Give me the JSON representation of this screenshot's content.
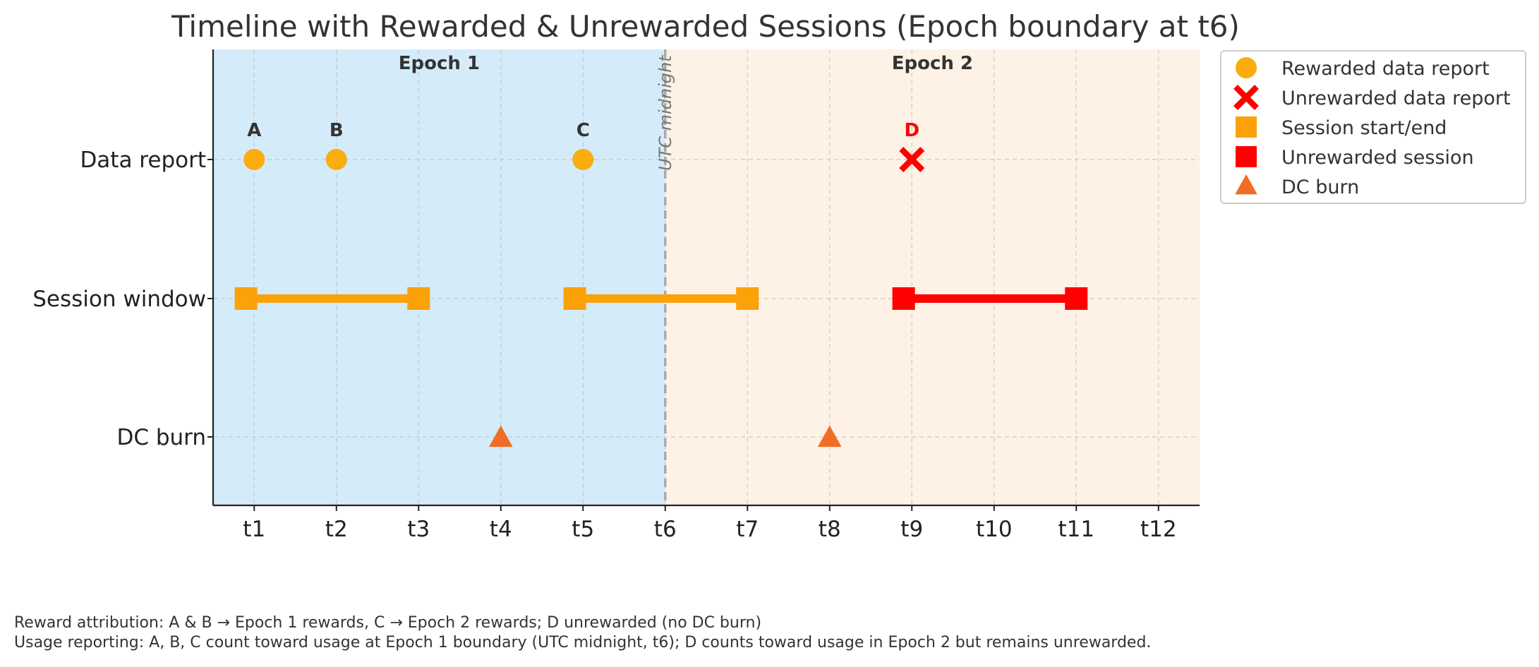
{
  "chart_data": {
    "type": "scatter",
    "title": "Timeline with Rewarded & Unrewarded Sessions (Epoch boundary at t6)",
    "xlabel": "",
    "ylabel": "",
    "categories_x": [
      "t1",
      "t2",
      "t3",
      "t4",
      "t5",
      "t6",
      "t7",
      "t8",
      "t9",
      "t10",
      "t11",
      "t12"
    ],
    "categories_y": [
      "Data report",
      "Session window",
      "DC burn"
    ],
    "xlim": [
      0.5,
      12.5
    ],
    "grid": true,
    "legend_position": "outside-top-right",
    "regions": [
      {
        "label": "Epoch 1",
        "from": 0.5,
        "to": 6,
        "color": "#d4ebfa"
      },
      {
        "label": "Epoch 2",
        "from": 6,
        "to": 12.5,
        "color": "#fef1e6"
      }
    ],
    "vline": {
      "x": 6,
      "label": "UTC midnight",
      "color": "#aaaaaa"
    },
    "series": [
      {
        "name": "Rewarded data report",
        "marker": "circle",
        "color": "#fbac0f",
        "y": "Data report",
        "points": [
          {
            "x": 1,
            "label": "A"
          },
          {
            "x": 2,
            "label": "B"
          },
          {
            "x": 5,
            "label": "C"
          }
        ]
      },
      {
        "name": "Unrewarded data report",
        "marker": "x",
        "color": "#ff0000",
        "y": "Data report",
        "points": [
          {
            "x": 9,
            "label": "D"
          }
        ]
      },
      {
        "name": "Session start/end",
        "marker": "square",
        "color": "#fba10a",
        "y": "Session window",
        "segments": [
          [
            0.9,
            3
          ],
          [
            4.9,
            7
          ]
        ]
      },
      {
        "name": "Unrewarded session",
        "marker": "square",
        "color": "#ff0000",
        "y": "Session window",
        "segments": [
          [
            8.9,
            11
          ]
        ]
      },
      {
        "name": "DC burn",
        "marker": "triangle",
        "color": "#f16d24",
        "y": "DC burn",
        "points": [
          {
            "x": 4
          },
          {
            "x": 8
          }
        ]
      }
    ],
    "notes": [
      "Reward attribution: A & B → Epoch 1 rewards, C → Epoch 2 rewards; D unrewarded (no DC burn)",
      "Usage reporting: A, B, C count toward usage at Epoch 1 boundary (UTC midnight, t6); D counts toward usage in Epoch 2 but remains unrewarded."
    ]
  }
}
